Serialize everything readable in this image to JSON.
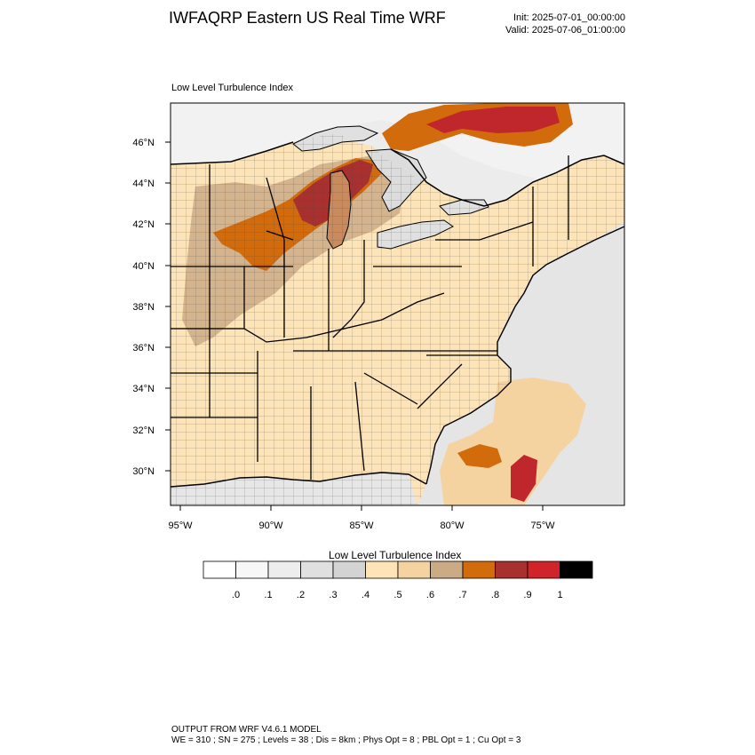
{
  "header": {
    "title": "IWFAQRP Eastern US Real Time WRF",
    "init": "Init: 2025-07-01_00:00:00",
    "valid": "Valid: 2025-07-06_01:00:00"
  },
  "map": {
    "subtitle": "Low Level Turbulence Index",
    "region": "Eastern United States",
    "lon_range": [
      -96,
      -71
    ],
    "lat_range": [
      28.5,
      47.8
    ],
    "lon_ticks": [
      "95°W",
      "90°W",
      "85°W",
      "80°W",
      "75°W"
    ],
    "lat_ticks": [
      "46°N",
      "44°N",
      "42°N",
      "40°N",
      "38°N",
      "36°N",
      "34°N",
      "32°N",
      "30°N"
    ],
    "colors": {
      "land_base": "#fce3b8",
      "water": "#ececec",
      "lake": "#e0e0e0",
      "high": "#d16b00",
      "very_high": "#c0272d"
    }
  },
  "legend": {
    "title": "Low Level Turbulence Index",
    "colors": [
      "#ffffff",
      "#f7f7f7",
      "#ededed",
      "#e0e0e0",
      "#d3d3d3",
      "#fde3b5",
      "#f5d3a1",
      "#cbab86",
      "#d26b0b",
      "#a8302f",
      "#d0232a",
      "#000000"
    ],
    "labels": [
      ".0",
      ".1",
      ".2",
      ".3",
      ".4",
      ".5",
      ".6",
      ".7",
      ".8",
      ".9",
      "1"
    ]
  },
  "footer": {
    "line1": "OUTPUT FROM WRF V4.6.1 MODEL",
    "line2": "WE = 310 ; SN = 275 ; Levels = 38 ; Dis = 8km ; Phys Opt = 8 ; PBL Opt = 1 ; Cu Opt = 3"
  }
}
